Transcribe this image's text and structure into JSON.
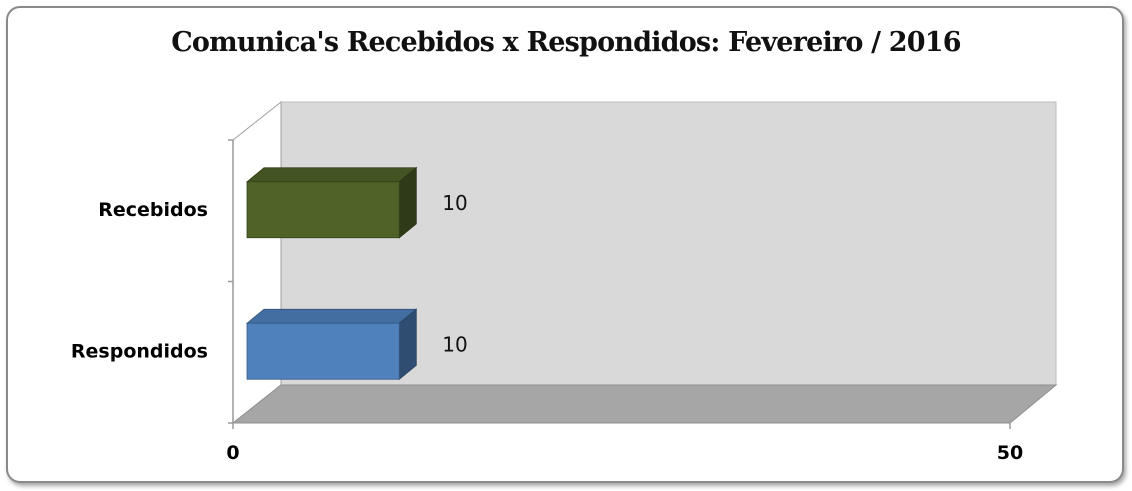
{
  "chart_data": {
    "type": "bar",
    "orientation": "horizontal",
    "style": "3d",
    "title": "Comunica's Recebidos x Respondidos:  Fevereiro / 2016",
    "categories": [
      "Recebidos",
      "Respondidos"
    ],
    "values": [
      10,
      10
    ],
    "data_labels": [
      "10",
      "10"
    ],
    "xlim": [
      0,
      50
    ],
    "x_ticks": [
      "0",
      "50"
    ],
    "grid": false,
    "legend": "none",
    "colors": {
      "Recebidos": "#4f6228",
      "Respondidos": "#4f81bd",
      "back_wall": "#d9d9d9",
      "floor": "#a6a6a6"
    }
  }
}
